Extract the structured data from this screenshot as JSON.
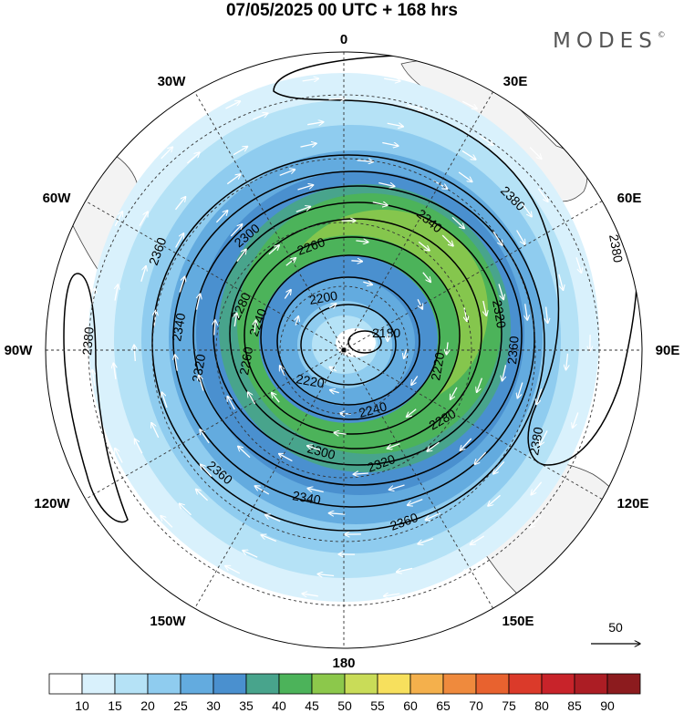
{
  "title": "07/05/2025  00 UTC  + 168 hrs",
  "brand": "MODES",
  "brand_mark": "©",
  "map": {
    "projection": "south-polar-stereographic",
    "longitude_labels": [
      "0",
      "30E",
      "60E",
      "90E",
      "120E",
      "150E",
      "180",
      "150W",
      "120W",
      "90W",
      "60W",
      "30W"
    ],
    "contour_labels": [
      "2180",
      "2200",
      "2220",
      "2220",
      "2240",
      "2240",
      "2260",
      "2260",
      "2280",
      "2280",
      "2300",
      "2300",
      "2320",
      "2320",
      "2320",
      "2340",
      "2340",
      "2340",
      "2360",
      "2360",
      "2360",
      "2360",
      "2380",
      "2380",
      "2380",
      "2380"
    ],
    "reference_vector_label": "50"
  },
  "colorbar": {
    "ticks": [
      "10",
      "15",
      "20",
      "25",
      "30",
      "35",
      "40",
      "45",
      "50",
      "55",
      "60",
      "65",
      "70",
      "75",
      "80",
      "85",
      "90"
    ],
    "colors": [
      "#ffffff",
      "#d9f1fc",
      "#b5e2f6",
      "#8fccef",
      "#63abdf",
      "#4a90cf",
      "#48a48c",
      "#4cb35a",
      "#8cc84b",
      "#c9dc58",
      "#f7e05d",
      "#f4b04c",
      "#ef8a3d",
      "#e8622f",
      "#db3a2a",
      "#c8232a",
      "#ac1d24",
      "#8c1b1e"
    ]
  }
}
